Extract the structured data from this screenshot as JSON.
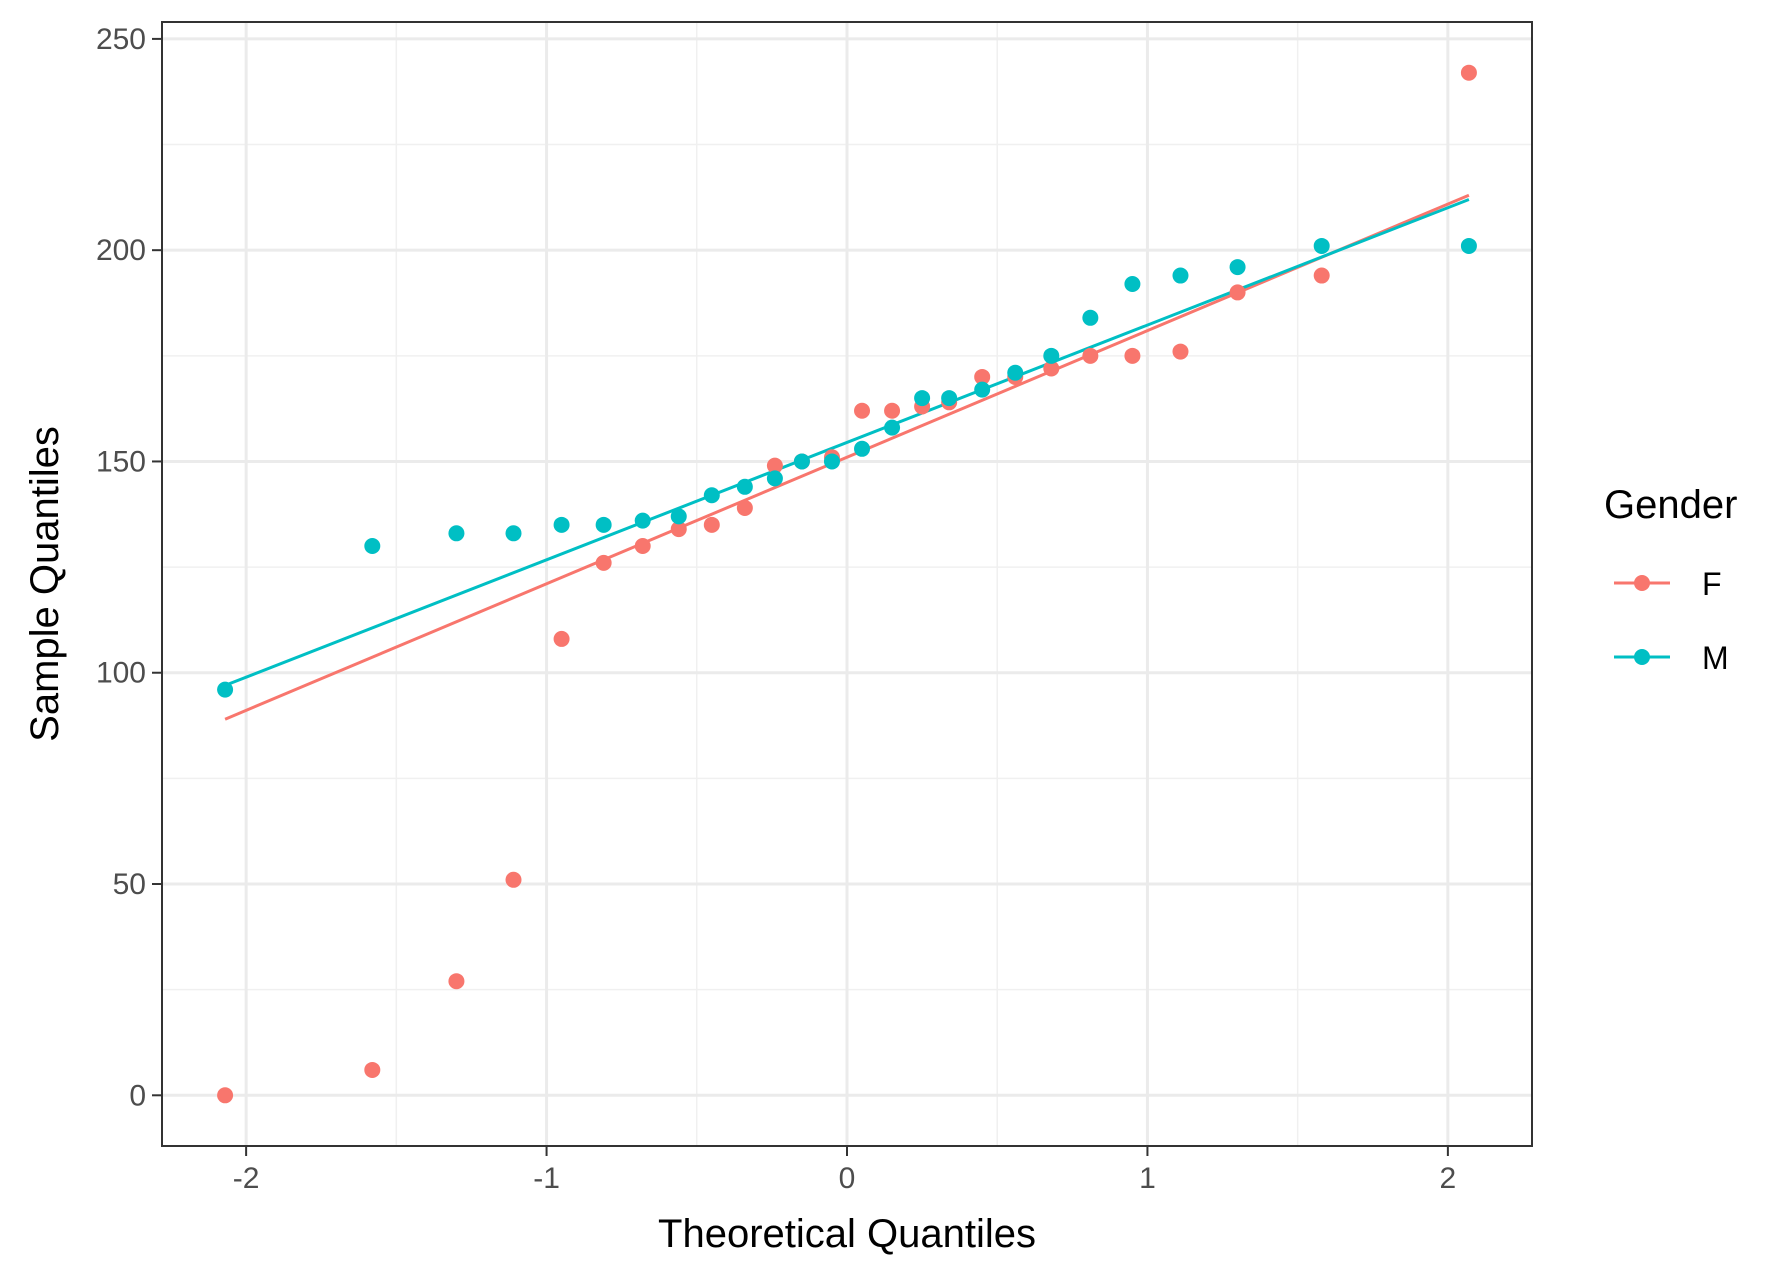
{
  "chart_data": {
    "type": "scatter",
    "xlabel": "Theoretical Quantiles",
    "ylabel": "Sample Quantiles",
    "xlim": [
      -2.28,
      2.28
    ],
    "ylim": [
      -12,
      254
    ],
    "x_ticks": [
      -2,
      -1,
      0,
      1,
      2
    ],
    "x_tick_labels": [
      "-2",
      "-1",
      "0",
      "1",
      "2"
    ],
    "y_ticks": [
      0,
      50,
      100,
      150,
      200,
      250
    ],
    "y_tick_labels": [
      "0",
      "50",
      "100",
      "150",
      "200",
      "250"
    ],
    "grid": true,
    "legend": {
      "title": "Gender",
      "position": "right"
    },
    "series": [
      {
        "name": "F",
        "color": "#F8766D",
        "points": [
          [
            -2.07,
            0
          ],
          [
            -1.58,
            6
          ],
          [
            -1.3,
            27
          ],
          [
            -1.11,
            51
          ],
          [
            -0.95,
            108
          ],
          [
            -0.81,
            126
          ],
          [
            -0.68,
            130
          ],
          [
            -0.56,
            134
          ],
          [
            -0.45,
            135
          ],
          [
            -0.34,
            139
          ],
          [
            -0.24,
            149
          ],
          [
            -0.15,
            150
          ],
          [
            -0.05,
            151
          ],
          [
            0.05,
            162
          ],
          [
            0.15,
            162
          ],
          [
            0.25,
            163
          ],
          [
            0.34,
            164
          ],
          [
            0.45,
            170
          ],
          [
            0.56,
            170
          ],
          [
            0.68,
            172
          ],
          [
            0.81,
            175
          ],
          [
            0.95,
            175
          ],
          [
            1.11,
            176
          ],
          [
            1.3,
            190
          ],
          [
            1.58,
            194
          ],
          [
            2.07,
            242
          ]
        ],
        "line": [
          [
            -2.07,
            89
          ],
          [
            2.07,
            213
          ]
        ]
      },
      {
        "name": "M",
        "color": "#00BFC4",
        "points": [
          [
            -2.07,
            96
          ],
          [
            -1.58,
            130
          ],
          [
            -1.3,
            133
          ],
          [
            -1.11,
            133
          ],
          [
            -0.95,
            135
          ],
          [
            -0.81,
            135
          ],
          [
            -0.68,
            136
          ],
          [
            -0.56,
            137
          ],
          [
            -0.45,
            142
          ],
          [
            -0.34,
            144
          ],
          [
            -0.24,
            146
          ],
          [
            -0.15,
            150
          ],
          [
            -0.05,
            150
          ],
          [
            0.05,
            153
          ],
          [
            0.15,
            158
          ],
          [
            0.25,
            165
          ],
          [
            0.34,
            165
          ],
          [
            0.45,
            167
          ],
          [
            0.56,
            171
          ],
          [
            0.68,
            175
          ],
          [
            0.81,
            184
          ],
          [
            0.95,
            192
          ],
          [
            1.11,
            194
          ],
          [
            1.3,
            196
          ],
          [
            1.58,
            201
          ],
          [
            2.07,
            201
          ]
        ],
        "line": [
          [
            -2.07,
            97
          ],
          [
            2.07,
            212
          ]
        ]
      }
    ]
  }
}
